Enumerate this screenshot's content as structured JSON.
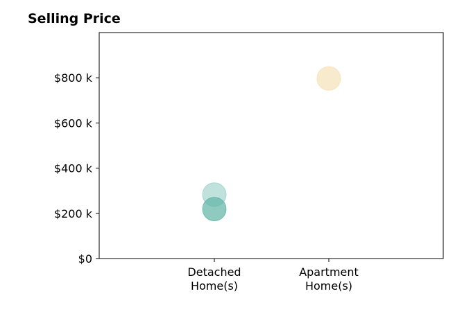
{
  "chart_data": {
    "type": "scatter",
    "title": "Selling Price",
    "xlabel": "",
    "ylabel": "",
    "categories": [
      [
        "Detached",
        "Home(s)"
      ],
      [
        "Apartment",
        "Home(s)"
      ]
    ],
    "ylim": [
      0,
      1000000
    ],
    "yticks": [
      0,
      200000,
      400000,
      600000,
      800000
    ],
    "ytick_labels": [
      "$0",
      "$200 k",
      "$400 k",
      "$600 k",
      "$800 k"
    ],
    "grid": false,
    "points": [
      {
        "category_index": 0,
        "value": 283000,
        "color": "#8cc8c0",
        "opacity": 0.55
      },
      {
        "category_index": 0,
        "value": 219000,
        "color": "#5fb3a5",
        "opacity": 0.7
      },
      {
        "category_index": 1,
        "value": 797000,
        "color": "#f5deb0",
        "opacity": 0.65
      }
    ]
  }
}
